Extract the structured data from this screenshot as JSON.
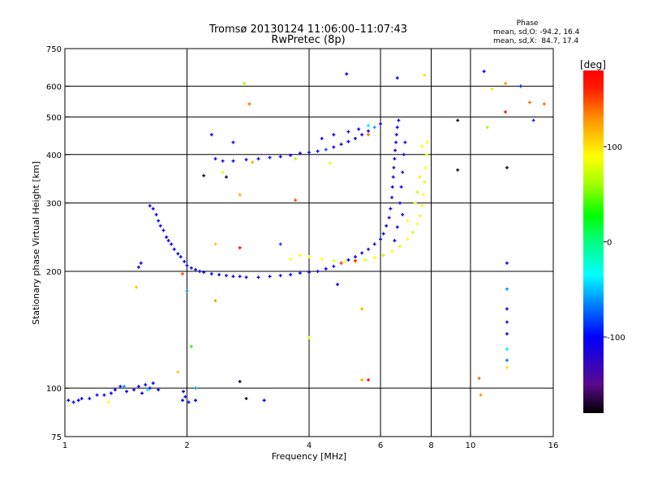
{
  "chart_data": {
    "type": "scatter",
    "title": "Tromsø 20130124 11:06:00–11:07:43",
    "subtitle": "RwPretec (8p)",
    "xlabel": "Frequency [MHz]",
    "ylabel": "Stationary phase Virtual Height [km]",
    "xscale": "log",
    "yscale": "log",
    "xlim": [
      1,
      16
    ],
    "ylim": [
      75,
      750
    ],
    "xticks": [
      1,
      2,
      4,
      6,
      8,
      10,
      16
    ],
    "xtick_labels": [
      "1",
      "2",
      "4",
      "6",
      "8",
      "10",
      "16"
    ],
    "yticks": [
      75,
      100,
      200,
      300,
      400,
      500,
      600,
      750
    ],
    "ytick_labels": [
      "75",
      "100",
      "200",
      "300",
      "400",
      "500",
      "600",
      "750"
    ],
    "xgrid": [
      2,
      4,
      6,
      8,
      10
    ],
    "ygrid": [
      100,
      200,
      300,
      400,
      500,
      600
    ],
    "stats": {
      "heading": "Phase",
      "o_line": "mean, sd,O: -94.2, 16.4",
      "x_line": "mean, sd,X:  84.7, 17.4"
    },
    "colorbar": {
      "label": "[deg]",
      "range": [
        -180,
        180
      ],
      "ticks": [
        100,
        0,
        -100
      ],
      "tick_labels": [
        "100",
        "0",
        "-100"
      ],
      "stops": [
        [
          -180,
          "#000000"
        ],
        [
          -150,
          "#5a0a8c"
        ],
        [
          -100,
          "#0000ff"
        ],
        [
          -70,
          "#0070ff"
        ],
        [
          -35,
          "#00ffff"
        ],
        [
          0,
          "#00ff80"
        ],
        [
          28,
          "#00ff00"
        ],
        [
          60,
          "#a0ff00"
        ],
        [
          90,
          "#ffff00"
        ],
        [
          130,
          "#ff9000"
        ],
        [
          160,
          "#ff2000"
        ],
        [
          180,
          "#ff0000"
        ]
      ]
    },
    "points_note": "[frequency MHz, virtual height km, phase deg]",
    "points": [
      [
        1.02,
        93,
        -110
      ],
      [
        1.05,
        92,
        -110
      ],
      [
        1.08,
        93,
        -105
      ],
      [
        1.1,
        94,
        -110
      ],
      [
        1.15,
        94,
        -100
      ],
      [
        1.2,
        96,
        -110
      ],
      [
        1.25,
        96,
        -110
      ],
      [
        1.3,
        97,
        -105
      ],
      [
        1.33,
        99,
        -110
      ],
      [
        1.37,
        101,
        -110
      ],
      [
        1.42,
        98,
        -100
      ],
      [
        1.48,
        99,
        -110
      ],
      [
        1.52,
        101,
        -110
      ],
      [
        1.55,
        97,
        -105
      ],
      [
        1.58,
        102,
        -110
      ],
      [
        1.62,
        100,
        -110
      ],
      [
        1.65,
        103,
        -100
      ],
      [
        1.7,
        99,
        -110
      ],
      [
        1.95,
        93,
        -110
      ],
      [
        1.98,
        95,
        -100
      ],
      [
        2.02,
        92,
        -110
      ],
      [
        1.96,
        98,
        -110
      ],
      [
        1.4,
        101,
        -60
      ],
      [
        1.28,
        92,
        90
      ],
      [
        1.6,
        99,
        -40
      ],
      [
        1.62,
        295,
        -110
      ],
      [
        1.65,
        290,
        -105
      ],
      [
        1.68,
        280,
        -110
      ],
      [
        1.7,
        270,
        -100
      ],
      [
        1.72,
        262,
        -110
      ],
      [
        1.75,
        255,
        -110
      ],
      [
        1.78,
        245,
        -105
      ],
      [
        1.8,
        240,
        -110
      ],
      [
        1.83,
        235,
        -100
      ],
      [
        1.86,
        228,
        -110
      ],
      [
        1.9,
        222,
        -110
      ],
      [
        1.93,
        218,
        -105
      ],
      [
        1.97,
        212,
        -110
      ],
      [
        2.0,
        207,
        -100
      ],
      [
        2.05,
        204,
        -110
      ],
      [
        2.1,
        202,
        -110
      ],
      [
        2.15,
        200,
        -105
      ],
      [
        2.2,
        199,
        -110
      ],
      [
        2.3,
        197,
        -110
      ],
      [
        2.4,
        196,
        -100
      ],
      [
        2.5,
        195,
        -110
      ],
      [
        2.6,
        194,
        -110
      ],
      [
        2.7,
        194,
        -105
      ],
      [
        2.8,
        193,
        -110
      ],
      [
        3.0,
        193,
        -110
      ],
      [
        3.2,
        194,
        -100
      ],
      [
        3.4,
        195,
        -110
      ],
      [
        3.6,
        196,
        -110
      ],
      [
        3.8,
        198,
        -105
      ],
      [
        4.0,
        199,
        -110
      ],
      [
        4.2,
        200,
        -110
      ],
      [
        4.4,
        203,
        -100
      ],
      [
        4.6,
        206,
        -110
      ],
      [
        4.8,
        210,
        -110
      ],
      [
        5.0,
        214,
        -105
      ],
      [
        5.2,
        218,
        -110
      ],
      [
        5.4,
        223,
        -110
      ],
      [
        5.6,
        228,
        -120
      ],
      [
        5.8,
        235,
        -110
      ],
      [
        6.0,
        242,
        -110
      ],
      [
        6.1,
        250,
        -105
      ],
      [
        6.2,
        262,
        -110
      ],
      [
        6.3,
        275,
        -120
      ],
      [
        6.35,
        290,
        -110
      ],
      [
        6.4,
        310,
        -130
      ],
      [
        6.42,
        330,
        -110
      ],
      [
        6.45,
        350,
        -120
      ],
      [
        6.47,
        370,
        -130
      ],
      [
        6.5,
        390,
        -110
      ],
      [
        6.52,
        410,
        -120
      ],
      [
        6.55,
        430,
        -110
      ],
      [
        6.57,
        450,
        -110
      ],
      [
        6.6,
        470,
        -100
      ],
      [
        6.65,
        490,
        -110
      ],
      [
        6.7,
        300,
        -120
      ],
      [
        6.75,
        330,
        -110
      ],
      [
        6.8,
        360,
        -130
      ],
      [
        6.85,
        400,
        -110
      ],
      [
        6.9,
        430,
        -120
      ],
      [
        6.6,
        260,
        -110
      ],
      [
        6.5,
        240,
        -100
      ],
      [
        6.8,
        280,
        -120
      ],
      [
        1.52,
        205,
        -110
      ],
      [
        1.54,
        210,
        -100
      ],
      [
        2.35,
        390,
        -110
      ],
      [
        2.45,
        385,
        -110
      ],
      [
        2.6,
        385,
        -100
      ],
      [
        2.8,
        388,
        -110
      ],
      [
        3.0,
        390,
        -110
      ],
      [
        3.2,
        393,
        -105
      ],
      [
        3.4,
        395,
        -110
      ],
      [
        3.6,
        398,
        -110
      ],
      [
        3.8,
        403,
        -100
      ],
      [
        4.0,
        405,
        -110
      ],
      [
        4.2,
        408,
        -110
      ],
      [
        4.4,
        412,
        -80
      ],
      [
        4.6,
        418,
        -110
      ],
      [
        4.8,
        425,
        -110
      ],
      [
        5.0,
        432,
        -100
      ],
      [
        5.2,
        440,
        -110
      ],
      [
        5.4,
        450,
        -110
      ],
      [
        5.6,
        460,
        -110
      ],
      [
        5.8,
        470,
        -60
      ],
      [
        6.0,
        480,
        -110
      ],
      [
        4.3,
        440,
        -110
      ],
      [
        4.6,
        450,
        -100
      ],
      [
        5.0,
        458,
        -110
      ],
      [
        5.3,
        465,
        -110
      ],
      [
        5.6,
        475,
        -40
      ],
      [
        2.3,
        450,
        -110
      ],
      [
        2.6,
        430,
        -110
      ],
      [
        3.8,
        220,
        90
      ],
      [
        4.0,
        218,
        85
      ],
      [
        4.3,
        215,
        90
      ],
      [
        4.6,
        213,
        80
      ],
      [
        4.9,
        212,
        90
      ],
      [
        5.2,
        212,
        95
      ],
      [
        5.5,
        214,
        85
      ],
      [
        5.8,
        217,
        90
      ],
      [
        6.1,
        220,
        70
      ],
      [
        6.4,
        225,
        90
      ],
      [
        6.7,
        232,
        85
      ],
      [
        7.0,
        242,
        90
      ],
      [
        7.2,
        252,
        80
      ],
      [
        7.4,
        265,
        90
      ],
      [
        7.5,
        278,
        95
      ],
      [
        7.6,
        295,
        85
      ],
      [
        7.65,
        315,
        90
      ],
      [
        7.7,
        340,
        80
      ],
      [
        7.75,
        370,
        90
      ],
      [
        7.8,
        400,
        85
      ],
      [
        7.82,
        430,
        90
      ],
      [
        7.3,
        300,
        80
      ],
      [
        7.0,
        270,
        90
      ],
      [
        7.5,
        350,
        95
      ],
      [
        7.6,
        420,
        90
      ],
      [
        7.4,
        320,
        70
      ],
      [
        3.6,
        215,
        90
      ],
      [
        4.8,
        210,
        150
      ],
      [
        5.6,
        450,
        140
      ],
      [
        5.2,
        213,
        160
      ],
      [
        2.77,
        610,
        60
      ],
      [
        2.85,
        540,
        140
      ],
      [
        4.95,
        645,
        -100
      ],
      [
        6.6,
        630,
        -100
      ],
      [
        7.7,
        640,
        100
      ],
      [
        10.8,
        655,
        -100
      ],
      [
        12.2,
        610,
        130
      ],
      [
        11.3,
        590,
        100
      ],
      [
        13.3,
        600,
        -90
      ],
      [
        14,
        545,
        140
      ],
      [
        12.2,
        515,
        170
      ],
      [
        15.2,
        540,
        140
      ],
      [
        14.3,
        490,
        -90
      ],
      [
        9.3,
        490,
        -170
      ],
      [
        12.3,
        370,
        -170
      ],
      [
        9.3,
        365,
        -170
      ],
      [
        11,
        470,
        60
      ],
      [
        12.3,
        210,
        -100
      ],
      [
        12.3,
        180,
        -60
      ],
      [
        12.3,
        160,
        -110
      ],
      [
        12.3,
        148,
        -130
      ],
      [
        12.3,
        138,
        -110
      ],
      [
        12.3,
        126,
        -40
      ],
      [
        12.3,
        118,
        -70
      ],
      [
        12.3,
        113,
        100
      ],
      [
        10.5,
        106,
        140
      ],
      [
        10.6,
        96,
        130
      ],
      [
        5.4,
        105,
        120
      ],
      [
        5.6,
        105,
        170
      ],
      [
        5.4,
        160,
        120
      ],
      [
        4.7,
        185,
        -110
      ],
      [
        4.0,
        135,
        80
      ],
      [
        2.7,
        104,
        -170
      ],
      [
        2.8,
        94,
        -170
      ],
      [
        3.1,
        93,
        -100
      ],
      [
        2.1,
        100,
        -60
      ],
      [
        2.1,
        93,
        -100
      ],
      [
        2.05,
        128,
        30
      ],
      [
        1.9,
        110,
        110
      ],
      [
        1.5,
        182,
        110
      ],
      [
        2.35,
        168,
        130
      ],
      [
        1.95,
        197,
        150
      ],
      [
        2.7,
        230,
        170
      ],
      [
        2.35,
        235,
        110
      ],
      [
        2.45,
        360,
        80
      ],
      [
        2.2,
        353,
        -170
      ],
      [
        2.5,
        350,
        -170
      ],
      [
        2.7,
        315,
        120
      ],
      [
        3.7,
        305,
        150
      ],
      [
        3.4,
        235,
        -80
      ],
      [
        4.5,
        380,
        80
      ],
      [
        3.7,
        390,
        60
      ],
      [
        2.0,
        178,
        -60
      ],
      [
        2.9,
        382,
        120
      ]
    ]
  }
}
